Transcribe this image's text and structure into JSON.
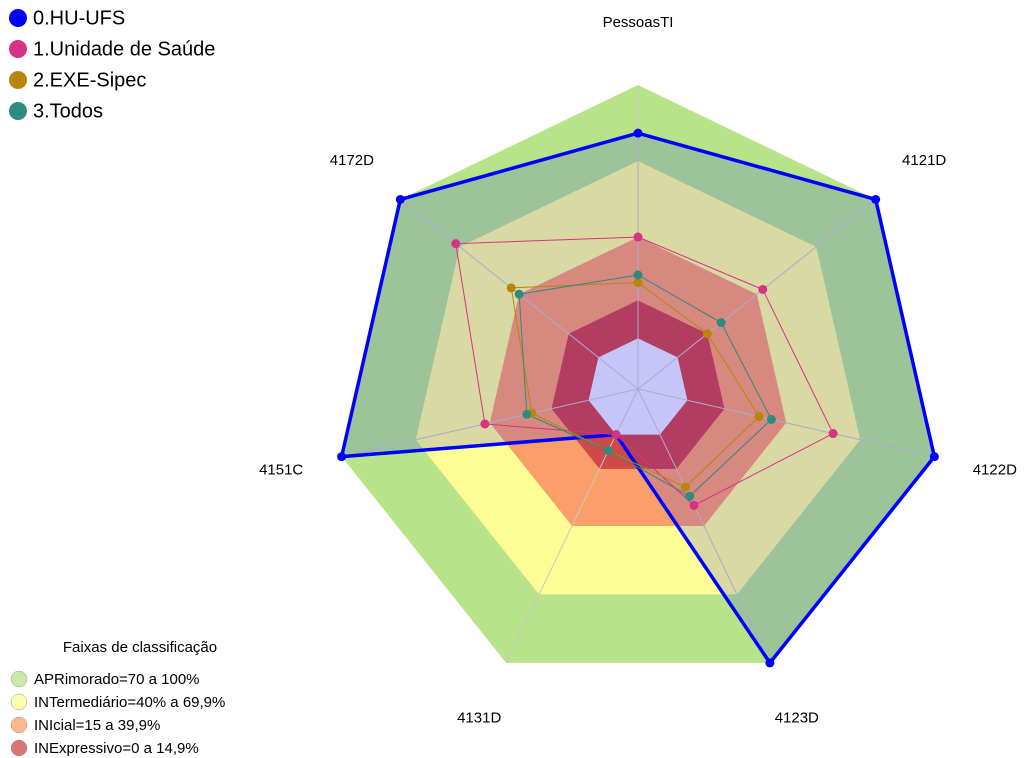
{
  "chart_data": {
    "type": "radar",
    "categories": [
      "PessoasTI",
      "4121D",
      "4122D",
      "4123D",
      "4131D",
      "4151C",
      "4172D"
    ],
    "ylim": [
      -20,
      100
    ],
    "series": [
      {
        "name": "0.HU-UFS",
        "color": "#0000ff",
        "filled": true,
        "values": [
          81,
          100,
          100,
          100,
          0,
          100,
          100
        ]
      },
      {
        "name": "1.Unidade de Saúde",
        "color": "#d63384",
        "values": [
          40,
          43,
          59,
          31,
          0,
          42,
          72
        ]
      },
      {
        "name": "2.EXE-Sipec",
        "color": "#b8860b",
        "values": [
          22,
          15,
          29,
          23,
          7,
          23,
          44
        ]
      },
      {
        "name": "3.Todos",
        "color": "#2e8b7f",
        "values": [
          25,
          22,
          34,
          27,
          7,
          25,
          40
        ]
      }
    ],
    "bands_title": "Faixas de classificação",
    "bands": [
      {
        "label": "APRimorado=70 a 100%",
        "range": [
          70,
          100
        ],
        "color": "#b7e389"
      },
      {
        "label": "INTermediário=40% a 69,9%",
        "range": [
          40,
          70
        ],
        "color": "#fdfd96"
      },
      {
        "label": "INIcial=15 a 39,9%",
        "range": [
          15,
          40
        ],
        "color": "#fb9f6a"
      },
      {
        "label": "INExpressivo=0 a 14,9%",
        "range": [
          0,
          15
        ],
        "color": "#d04848"
      }
    ],
    "center_color": "#e6e6fa",
    "grid": true
  }
}
